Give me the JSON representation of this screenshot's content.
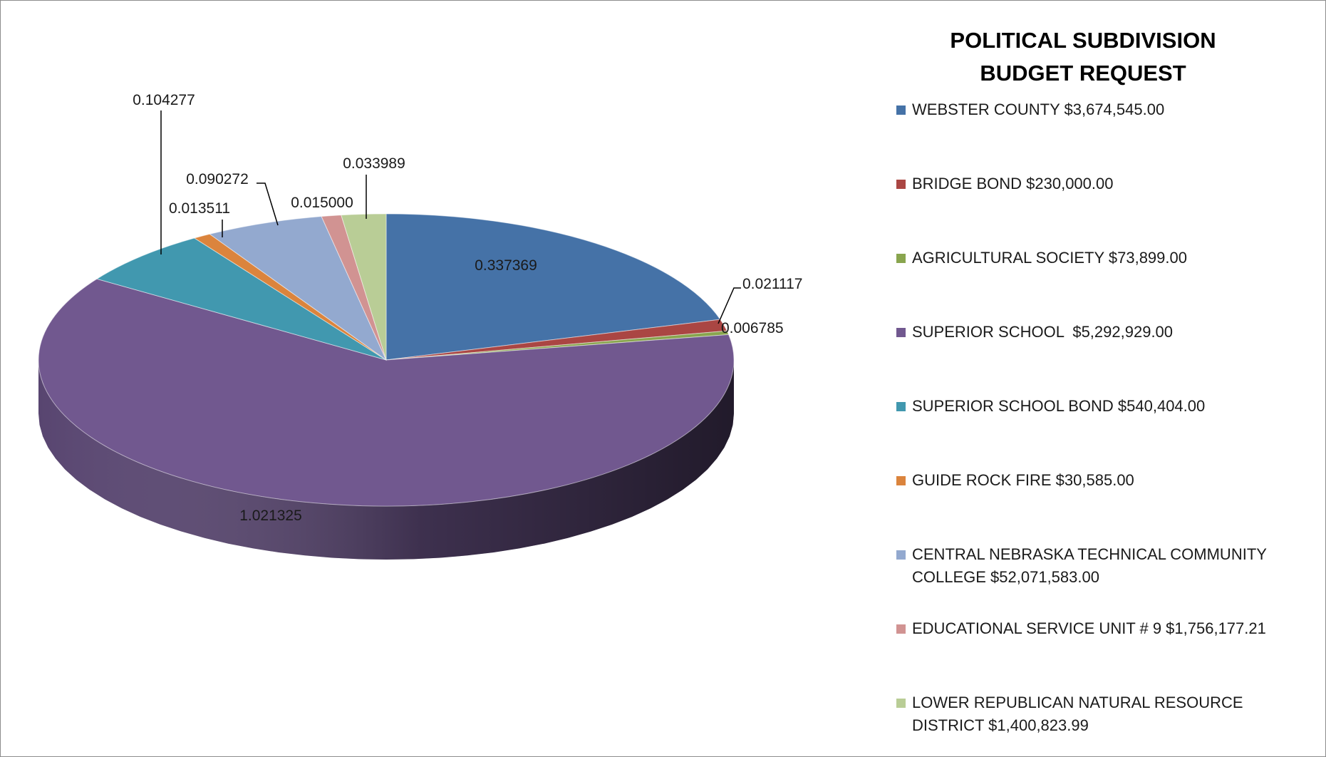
{
  "chart_data": {
    "type": "pie",
    "variant": "3d",
    "title_lines": [
      "POLITICAL SUBDIVISION",
      "BUDGET REQUEST"
    ],
    "slices": [
      {
        "name": "WEBSTER COUNTY $3,674,545.00",
        "value": 0.337369,
        "label": "0.337369",
        "color": "#4572a7"
      },
      {
        "name": "BRIDGE BOND $230,000.00",
        "value": 0.021117,
        "label": "0.021117",
        "color": "#aa4643"
      },
      {
        "name": "AGRICULTURAL SOCIETY $73,899.00",
        "value": 0.006785,
        "label": "0.006785",
        "color": "#89a54e"
      },
      {
        "name": "SUPERIOR SCHOOL  $5,292,929.00",
        "value": 1.021325,
        "label": "1.021325",
        "color": "#71588f"
      },
      {
        "name": "SUPERIOR SCHOOL BOND $540,404.00",
        "value": 0.104277,
        "label": "0.104277",
        "color": "#4198af"
      },
      {
        "name": "GUIDE ROCK FIRE $30,585.00",
        "value": 0.013511,
        "label": "0.013511",
        "color": "#db843d"
      },
      {
        "name": "CENTRAL NEBRASKA TECHNICAL COMMUNITY COLLEGE $52,071,583.00",
        "value": 0.090272,
        "label": "0.090272",
        "color": "#93a9cf"
      },
      {
        "name": "EDUCATIONAL SERVICE UNIT # 9 $1,756,177.21",
        "value": 0.015,
        "label": "0.015000",
        "color": "#d19392"
      },
      {
        "name": "LOWER REPUBLICAN NATURAL RESOURCE DISTRICT $1,400,823.99",
        "value": 0.033989,
        "label": "0.033989",
        "color": "#b9cd96"
      }
    ],
    "legend_position": "right",
    "start": "12 o'clock",
    "direction": "clockwise"
  }
}
